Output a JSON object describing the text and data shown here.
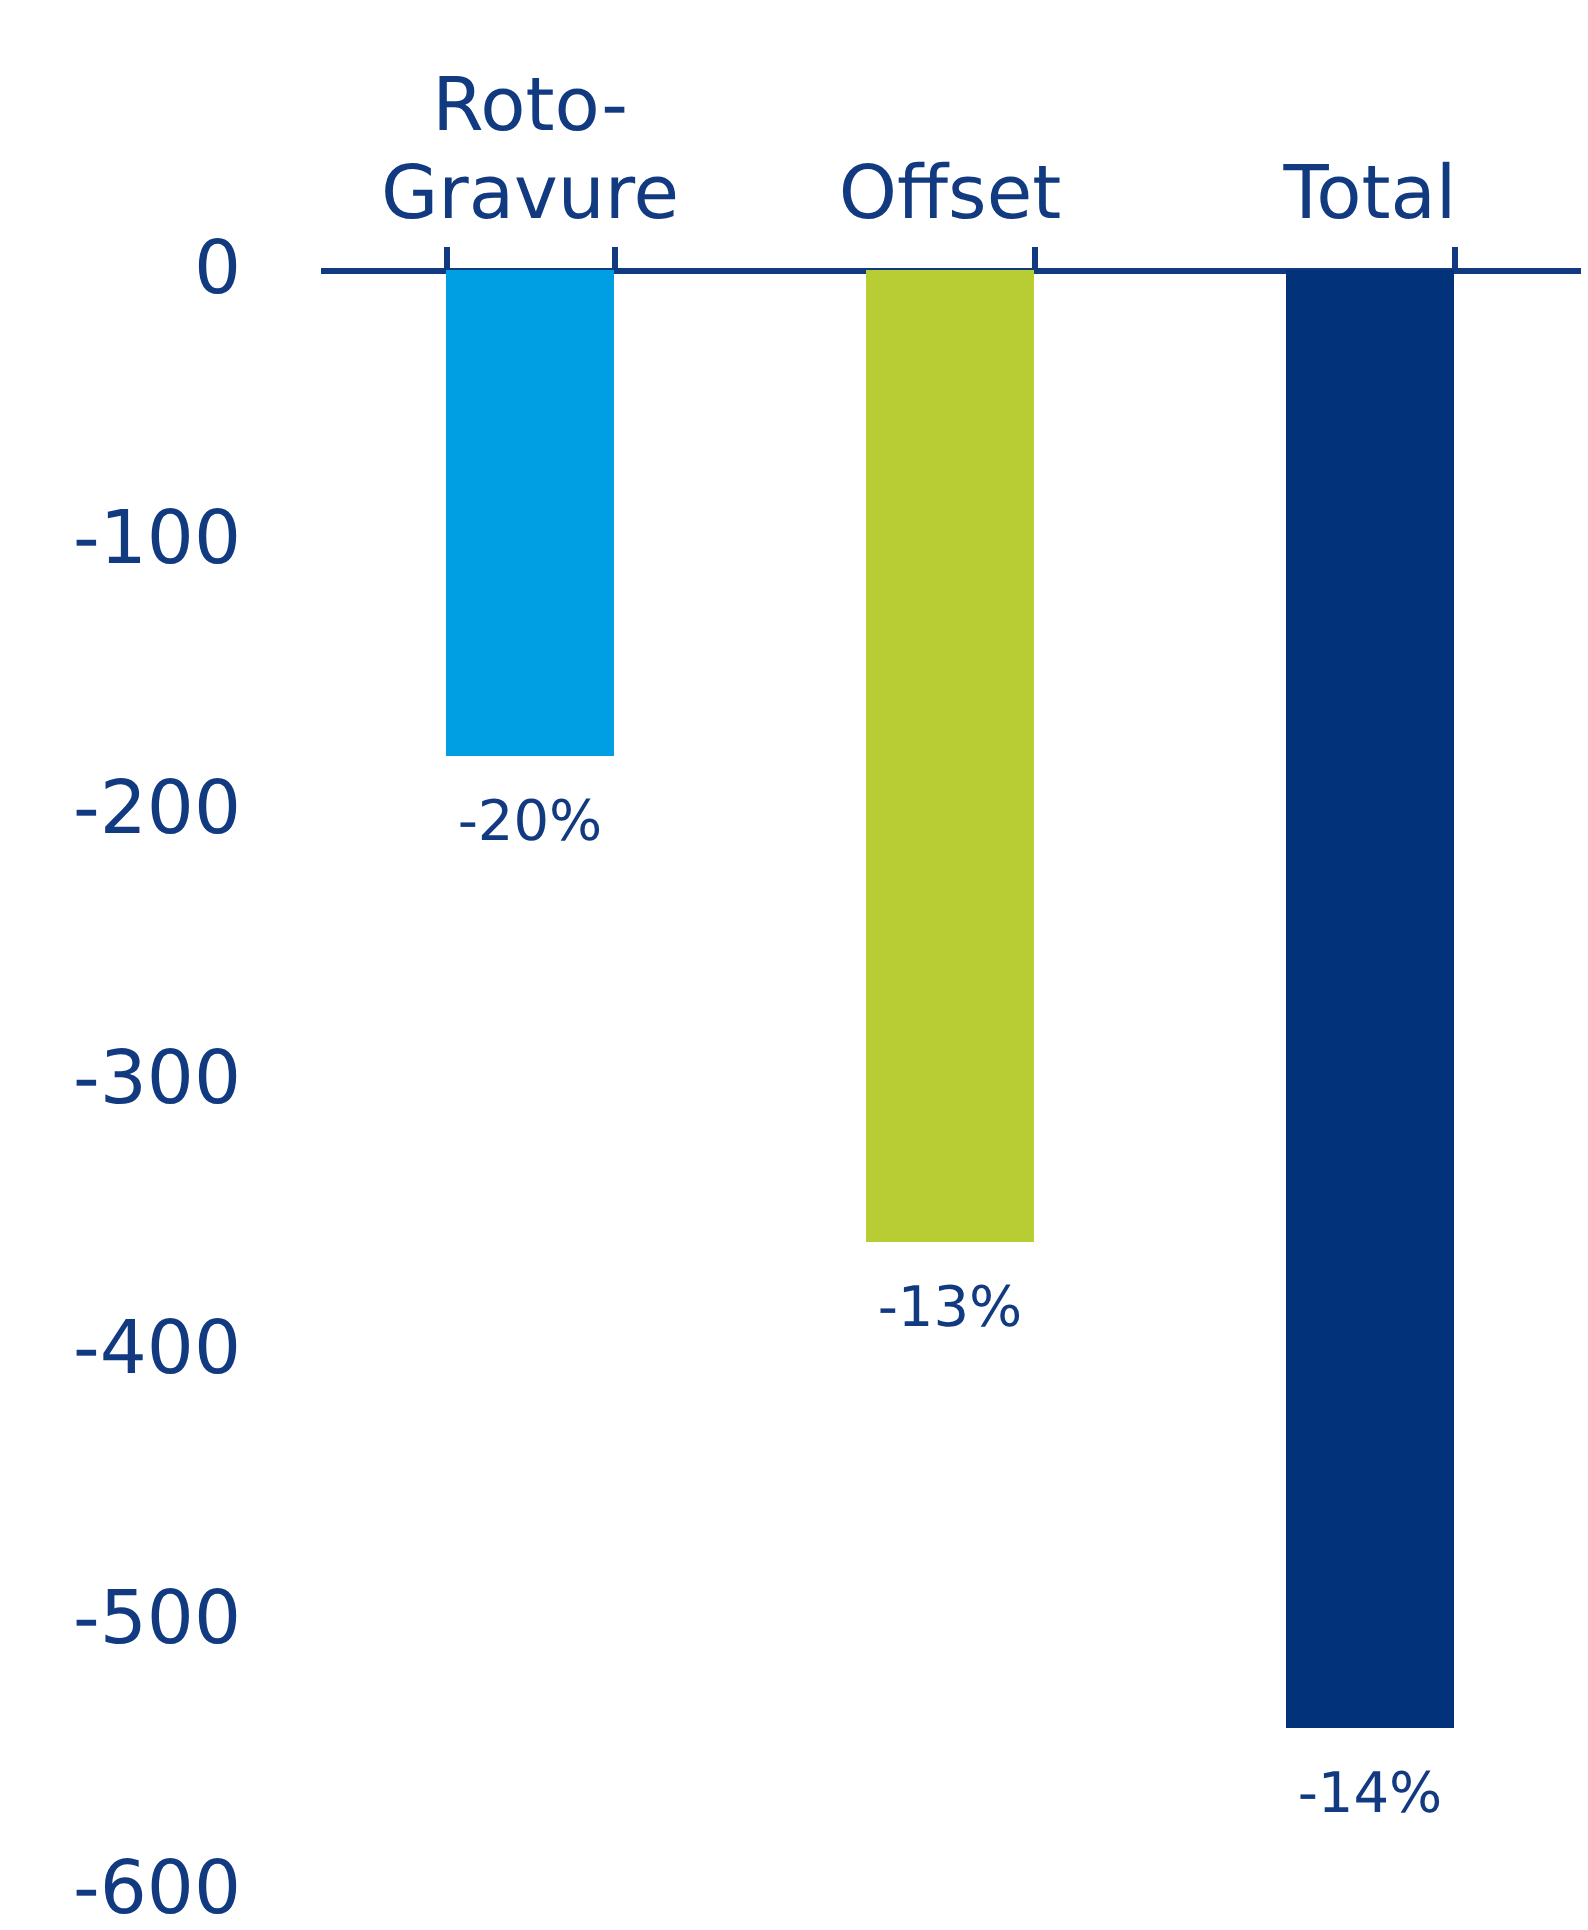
{
  "chart_data": {
    "type": "bar",
    "categories": [
      "Roto-Gravure",
      "Offset",
      "Total"
    ],
    "values": [
      -180,
      -360,
      -540
    ],
    "colors": [
      "#009fe3",
      "#b8cd33",
      "#02337a"
    ],
    "annotations": [
      {
        "text": "-20%",
        "x": "Roto-Gravure",
        "y": -180
      },
      {
        "text": "-13%",
        "x": "Offset",
        "y": -360
      },
      {
        "text": "-14%",
        "x": "Total",
        "y": -540
      }
    ],
    "ylim": [
      -600,
      0
    ],
    "yticks": [
      0,
      -100,
      -200,
      -300,
      -400,
      -500,
      -600
    ]
  }
}
